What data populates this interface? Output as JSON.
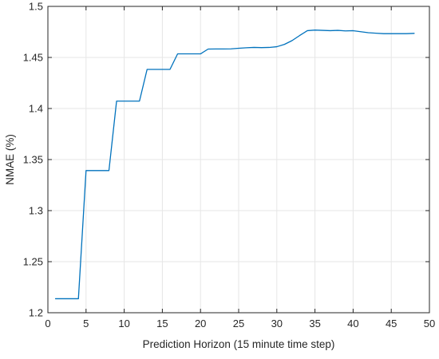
{
  "chart_data": {
    "type": "line",
    "title": "",
    "xlabel": "Prediction Horizon (15 minute time step)",
    "ylabel": "NMAE (%)",
    "xlim": [
      0,
      50
    ],
    "ylim": [
      1.2,
      1.5
    ],
    "xticks": [
      0,
      5,
      10,
      15,
      20,
      25,
      30,
      35,
      40,
      45,
      50
    ],
    "yticks": [
      1.2,
      1.25,
      1.3,
      1.35,
      1.4,
      1.45,
      1.5
    ],
    "xtick_labels": [
      "0",
      "5",
      "10",
      "15",
      "20",
      "25",
      "30",
      "35",
      "40",
      "45",
      "50"
    ],
    "ytick_labels": [
      "1.2",
      "1.25",
      "1.3",
      "1.35",
      "1.4",
      "1.45",
      "1.5"
    ],
    "grid": true,
    "series": [
      {
        "color": "#0072BD",
        "x": [
          1,
          4,
          5,
          8,
          9,
          12,
          13,
          16,
          17,
          20,
          21,
          22,
          23,
          24,
          25,
          26,
          27,
          28,
          29,
          30,
          31,
          32,
          33,
          34,
          35,
          36,
          37,
          38,
          39,
          40,
          41,
          42,
          43,
          44,
          45,
          46,
          47,
          48
        ],
        "values": [
          1.2137,
          1.2137,
          1.3392,
          1.3392,
          1.4072,
          1.4072,
          1.4383,
          1.4383,
          1.4535,
          1.4535,
          1.4582,
          1.4583,
          1.4583,
          1.4584,
          1.459,
          1.4595,
          1.4598,
          1.4596,
          1.4598,
          1.4605,
          1.4628,
          1.4665,
          1.4715,
          1.4762,
          1.4768,
          1.4765,
          1.4762,
          1.4765,
          1.476,
          1.4762,
          1.4752,
          1.4742,
          1.4737,
          1.4733,
          1.4733,
          1.4733,
          1.4733,
          1.4736
        ]
      }
    ]
  }
}
